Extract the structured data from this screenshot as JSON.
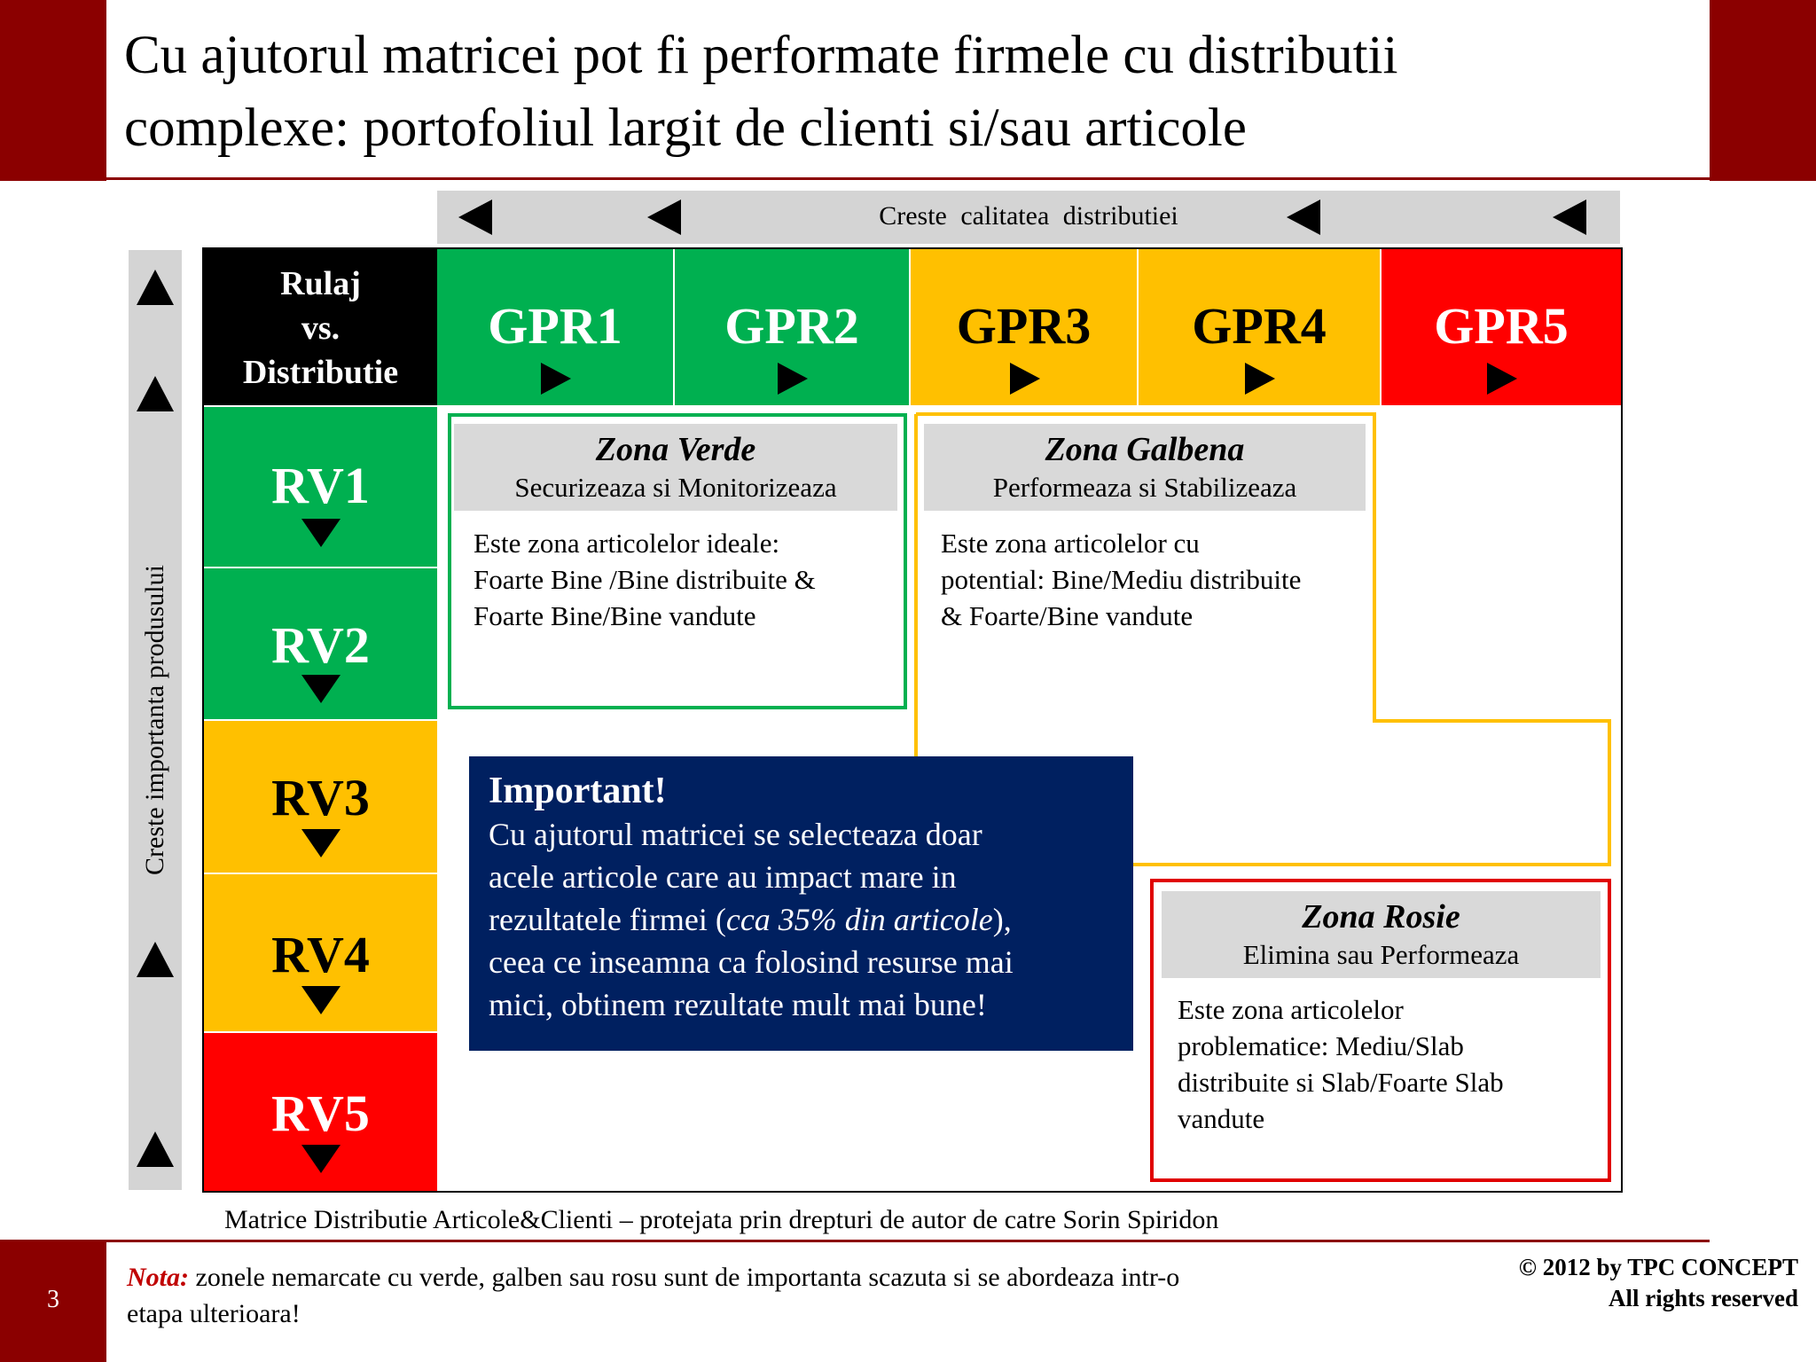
{
  "title": {
    "line1": "Cu ajutorul matricei pot fi performate firmele cu distributii",
    "line2": "complexe: portofoliul largit de clienti si/sau articole"
  },
  "top_axis": {
    "label": "Creste  calitatea  distributiei"
  },
  "side_axis": {
    "label": "Creste importanta produsului"
  },
  "matrix": {
    "corner": {
      "line1": "Rulaj",
      "line2": "vs.",
      "line3": "Distributie"
    },
    "columns": [
      "GPR1",
      "GPR2",
      "GPR3",
      "GPR4",
      "GPR5"
    ],
    "rows": [
      "RV1",
      "RV2",
      "RV3",
      "RV4",
      "RV5"
    ]
  },
  "zones": {
    "green": {
      "title": "Zona Verde",
      "subtitle": "Securizeaza si Monitorizeaza",
      "line1": "Este zona articolelor ideale:",
      "line2": "Foarte Bine /Bine distribuite &",
      "line3": "Foarte Bine/Bine vandute"
    },
    "yellow": {
      "title": "Zona Galbena",
      "subtitle": "Performeaza si Stabilizeaza",
      "line1": "Este zona articolelor cu",
      "line2": "potential: Bine/Mediu distribuite",
      "line3": "& Foarte/Bine vandute"
    },
    "red": {
      "title": "Zona Rosie",
      "subtitle": "Elimina sau Performeaza",
      "line1": "Este zona articolelor",
      "line2": "problematice: Mediu/Slab",
      "line3": "distribuite si Slab/Foarte Slab",
      "line4": "vandute"
    }
  },
  "important": {
    "title": "Important!",
    "line1": "Cu ajutorul matricei se selecteaza doar",
    "line2": "acele articole care au impact mare in",
    "line3_pre": "rezultatele firmei (",
    "line3_em": "cca 35% din articole",
    "line3_post": "),",
    "line4": "ceea ce inseamna ca folosind resurse mai",
    "line5": "mici, obtinem rezultate mult mai bune!"
  },
  "caption": "Matrice Distributie Articole&Clienti – protejata prin drepturi de autor de catre Sorin Spiridon",
  "footer": {
    "page_number": "3",
    "note_label": "Nota:",
    "note_line1": " zonele nemarcate cu verde, galben sau rosu sunt de importanta scazuta si se abordeaza intr-o",
    "note_line2": "etapa ulterioara!",
    "copyright_line1": "© 2012 by TPC CONCEPT",
    "copyright_line2": "All rights reserved"
  },
  "colors": {
    "brand_dark_red": "#8b0000",
    "green": "#00b050",
    "yellow": "#ffc000",
    "red": "#ff0000",
    "navy": "#002060"
  }
}
